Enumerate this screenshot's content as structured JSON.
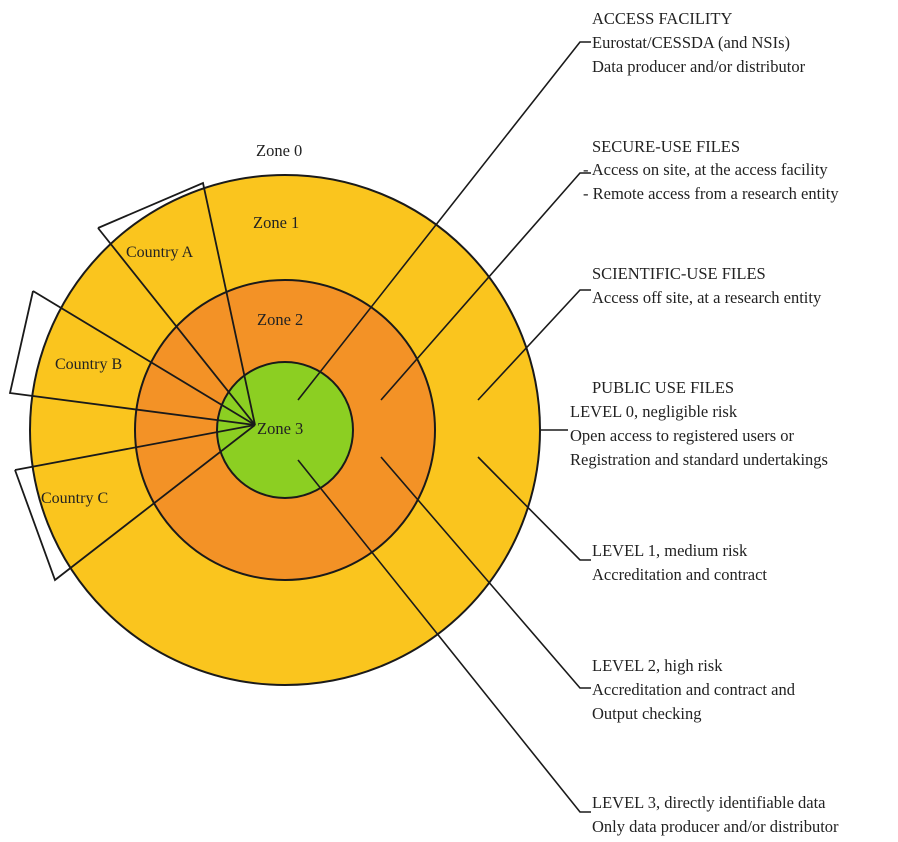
{
  "colors": {
    "zone1": "#fac51e",
    "zone2": "#f39226",
    "zone3": "#8ccf22"
  },
  "zones": {
    "zone0": "Zone 0",
    "zone1": "Zone 1",
    "zone2": "Zone 2",
    "zone3": "Zone 3"
  },
  "countries": {
    "a": "Country A",
    "b": "Country B",
    "c": "Country C"
  },
  "annotations": {
    "access_facility": {
      "title": "ACCESS FACILITY",
      "line1": "Eurostat/CESSDA  (and NSIs)",
      "line2": "Data producer and/or distributor"
    },
    "secure_use": {
      "title": "SECURE-USE FILES",
      "line1": "- Access on site, at the access facility",
      "line2": "- Remote access from a research entity"
    },
    "scientific_use": {
      "title": "SCIENTIFIC-USE FILES",
      "line1": "Access off site, at a research entity"
    },
    "public_use": {
      "title": "PUBLIC USE  FILES",
      "line1": "LEVEL 0, negligible risk",
      "line2": "Open access to registered users or",
      "line3": "Registration and standard undertakings"
    },
    "level1": {
      "title": "LEVEL 1, medium risk",
      "line1": "Accreditation and contract"
    },
    "level2": {
      "title": "LEVEL 2, high risk",
      "line1": "Accreditation and contract and",
      "line2": "Output checking"
    },
    "level3": {
      "title": "LEVEL 3, directly identifiable data",
      "line1": "Only data producer and/or distributor"
    }
  }
}
